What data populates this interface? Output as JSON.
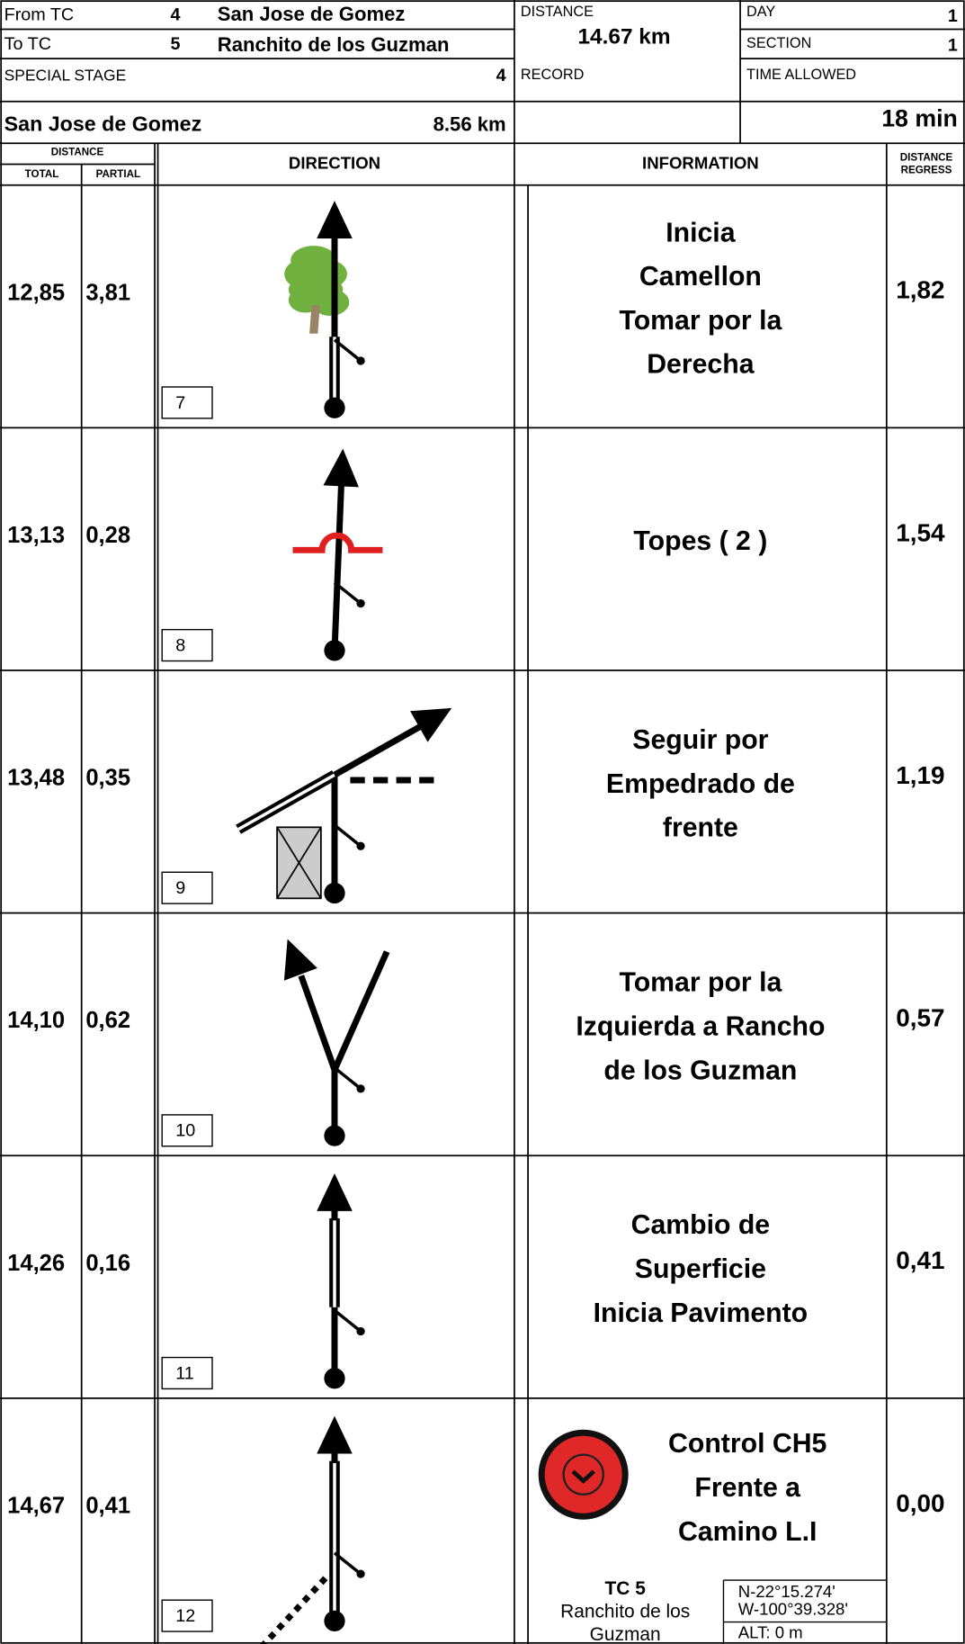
{
  "header": {
    "from_tc": {
      "label": "From TC",
      "number": "4",
      "name": "San Jose de Gomez"
    },
    "to_tc": {
      "label": "To TC",
      "number": "5",
      "name": "Ranchito de los Guzman"
    },
    "special_stage": {
      "label": "SPECIAL STAGE",
      "number": "4",
      "name": "San Jose de Gomez",
      "length": "8.56 km"
    },
    "distance": {
      "label": "DISTANCE",
      "value": "14.67 km"
    },
    "record": {
      "label": "RECORD"
    },
    "day": {
      "label": "DAY",
      "value": "1"
    },
    "section": {
      "label": "SECTION",
      "value": "1"
    },
    "time_allowed": {
      "label": "TIME ALLOWED",
      "value": "18 min"
    }
  },
  "columns": {
    "distance": "DISTANCE",
    "total": "TOTAL",
    "partial": "PARTIAL",
    "direction": "DIRECTION",
    "information": "INFORMATION",
    "regress": [
      "DISTANCE",
      "REGRESS"
    ]
  },
  "rows": [
    {
      "total": "12,85",
      "partial": "3,81",
      "number": "7",
      "info": [
        "Inicia",
        "Camellon",
        "Tomar por la",
        "Derecha"
      ],
      "regress": "1,82"
    },
    {
      "total": "13,13",
      "partial": "0,28",
      "number": "8",
      "info": [
        "Topes ( 2 )"
      ],
      "regress": "1,54"
    },
    {
      "total": "13,48",
      "partial": "0,35",
      "number": "9",
      "info": [
        "Seguir por",
        "Empedrado de",
        "frente"
      ],
      "regress": "1,19"
    },
    {
      "total": "14,10",
      "partial": "0,62",
      "number": "10",
      "info": [
        "Tomar por la",
        "Izquierda a Rancho",
        "de los Guzman"
      ],
      "regress": "0,57"
    },
    {
      "total": "14,26",
      "partial": "0,16",
      "number": "11",
      "info": [
        "Cambio de",
        "Superficie",
        "Inicia Pavimento"
      ],
      "regress": "0,41"
    },
    {
      "total": "14,67",
      "partial": "0,41",
      "number": "12",
      "info": [
        "Control CH5",
        "Frente a",
        "Camino L.I"
      ],
      "regress": "0,00",
      "tc": {
        "title": "TC 5",
        "name": [
          "Ranchito de los",
          "Guzman"
        ],
        "coords": [
          "N-22°15.274'",
          "W-100°39.328'"
        ],
        "alt": "ALT: 0 m"
      }
    }
  ]
}
